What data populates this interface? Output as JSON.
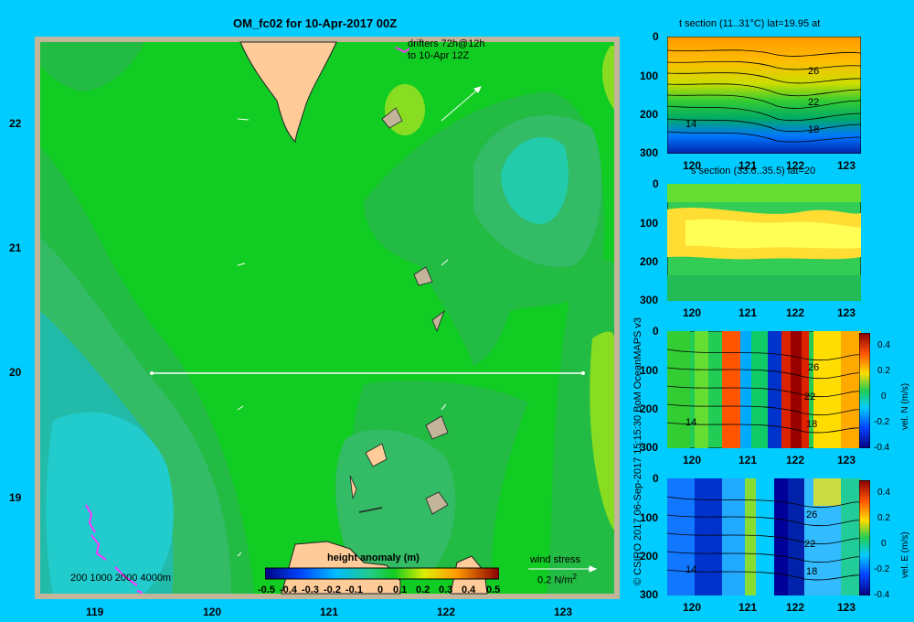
{
  "main_map": {
    "title": "OM_fc02 for 10-Apr-2017 00Z",
    "x_ticks": [
      "119",
      "120",
      "121",
      "122",
      "123"
    ],
    "y_ticks": [
      "22",
      "21",
      "20",
      "19"
    ],
    "drifters_label_line1": "drifters 72h@12h",
    "drifters_label_line2": "to 10-Apr 12Z",
    "depth_legend": "200  1000  2000  4000m",
    "colorbar_title": "height anomaly (m)",
    "colorbar_ticks": [
      "-0.5",
      "-0.4",
      "-0.3",
      "-0.2",
      "-0.1",
      "0",
      "0.1",
      "0.2",
      "0.3",
      "0.4",
      "0.5"
    ],
    "wind_label": "wind stress",
    "wind_scale_value": "0.2 N/m",
    "wind_scale_exp": "2"
  },
  "credit": "© CSIRO 2017   06-Sep-2017 15:15:30 BoM OceanMAPS v3",
  "panels": [
    {
      "title": "t section (11..31°C) lat=19.95 at",
      "y_ticks": [
        "0",
        "100",
        "200",
        "300"
      ],
      "x_ticks": [
        "120",
        "121",
        "122",
        "123"
      ],
      "contour_labels": [
        "26",
        "22",
        "18",
        "14"
      ],
      "colorbar": false
    },
    {
      "title": "s section (33.6..35.5) lat=20",
      "y_ticks": [
        "0",
        "100",
        "200",
        "300"
      ],
      "x_ticks": [
        "120",
        "121",
        "122",
        "123"
      ],
      "contour_labels": [],
      "colorbar": false
    },
    {
      "title": "",
      "y_ticks": [
        "0",
        "100",
        "200",
        "300"
      ],
      "x_ticks": [
        "120",
        "121",
        "122",
        "123"
      ],
      "contour_labels": [
        "26",
        "22",
        "18",
        "14"
      ],
      "colorbar": true,
      "colorbar_ticks": [
        "0.4",
        "0.2",
        "0",
        "-0.2",
        "-0.4"
      ],
      "colorbar_label": "vel. N  (m/s)"
    },
    {
      "title": "",
      "y_ticks": [
        "0",
        "100",
        "200",
        "300"
      ],
      "x_ticks": [
        "120",
        "121",
        "122",
        "123"
      ],
      "contour_labels": [
        "26",
        "22",
        "18",
        "14"
      ],
      "colorbar": true,
      "colorbar_ticks": [
        "0.4",
        "0.2",
        "0",
        "-0.2",
        "-0.4"
      ],
      "colorbar_label": "vel. E  (m/s)"
    }
  ]
}
